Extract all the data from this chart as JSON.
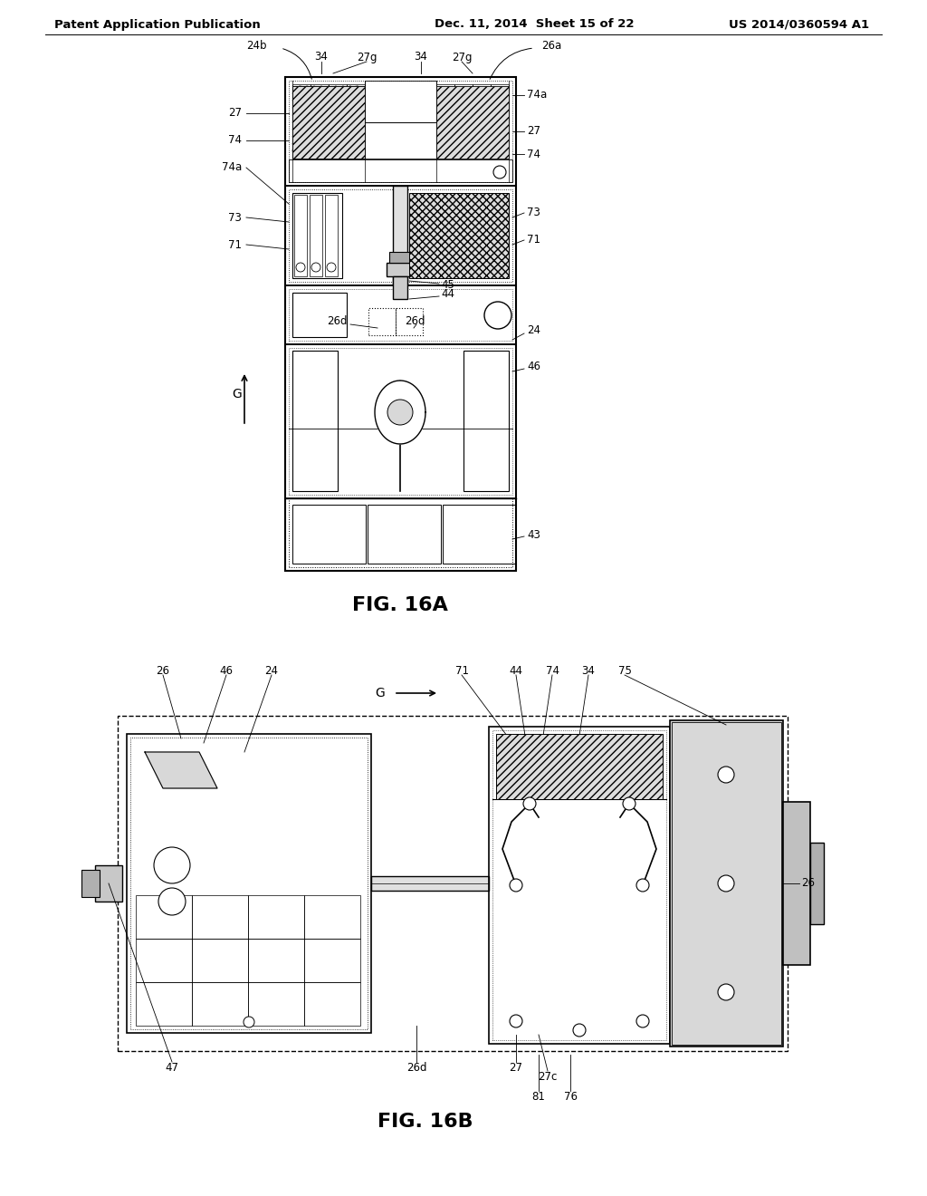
{
  "header_left": "Patent Application Publication",
  "header_center": "Dec. 11, 2014  Sheet 15 of 22",
  "header_right": "US 2014/0360594 A1",
  "fig16a_label": "FIG. 16A",
  "fig16b_label": "FIG. 16B",
  "background_color": "#ffffff",
  "line_color": "#000000",
  "text_color": "#000000",
  "header_fontsize": 9.5,
  "fig_label_fontsize": 16,
  "annotation_fontsize": 8.5
}
